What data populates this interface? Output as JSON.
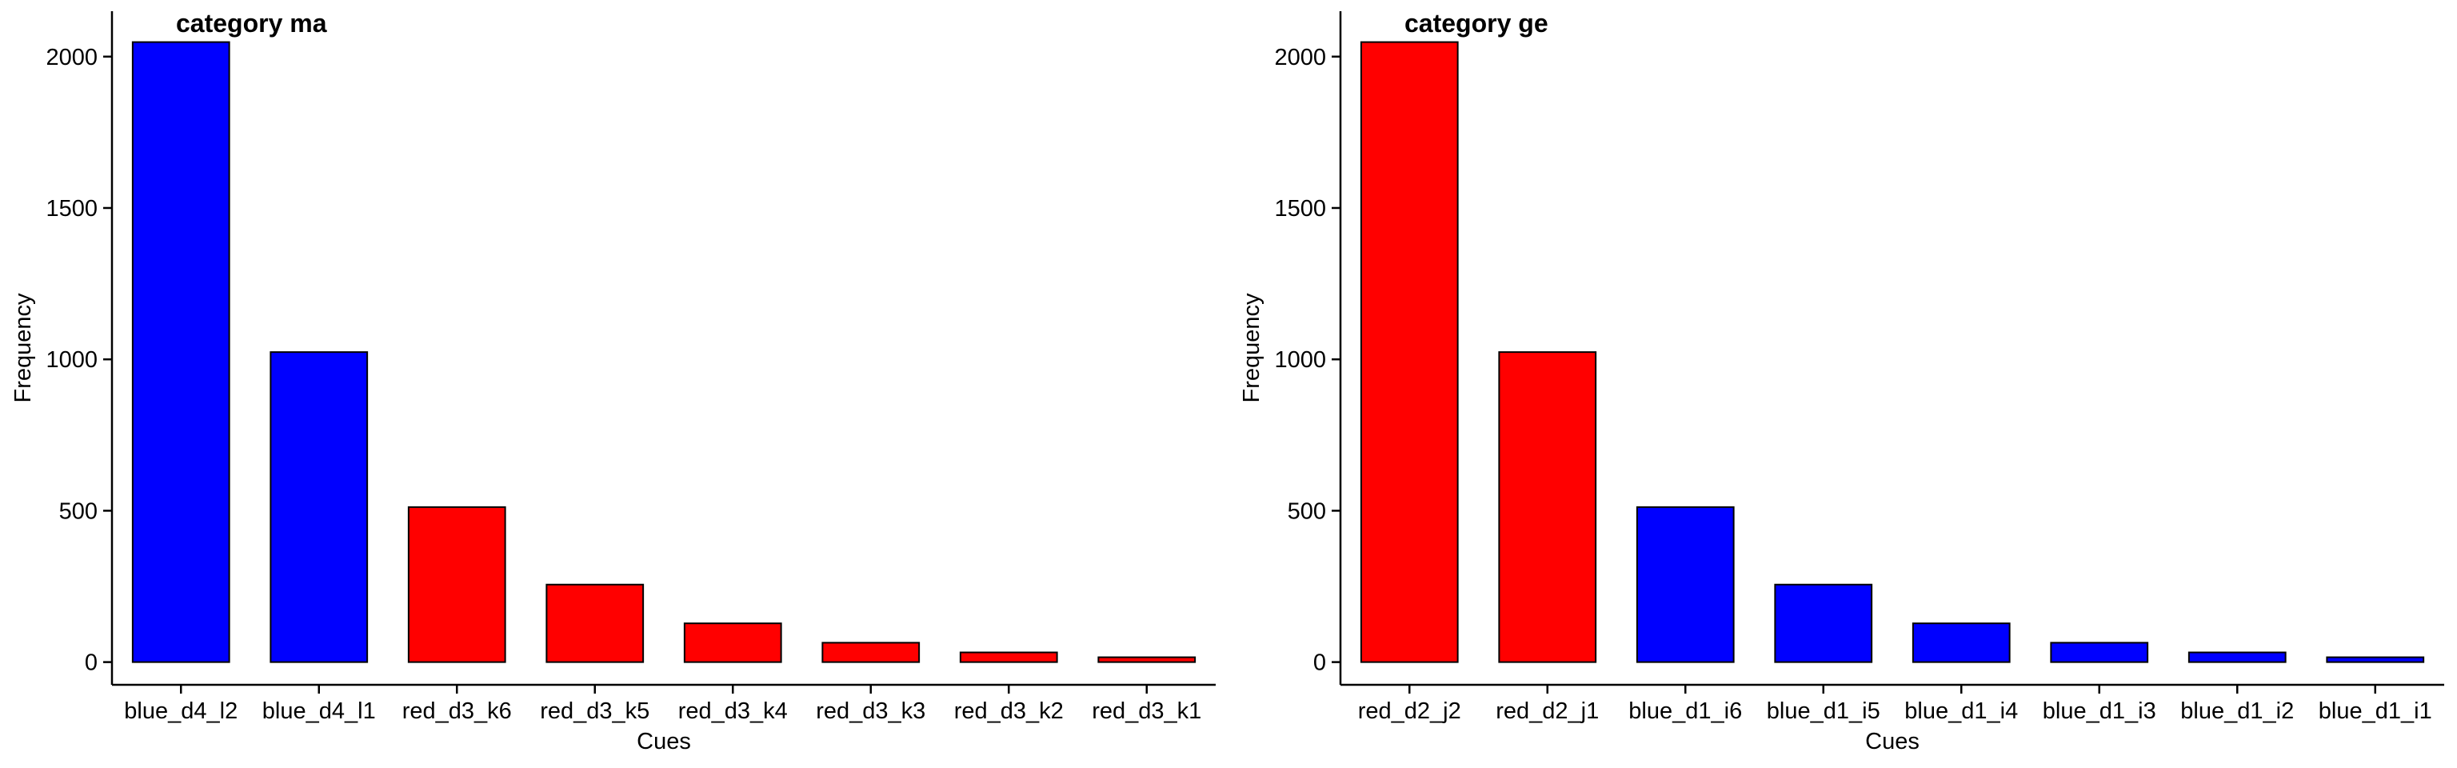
{
  "chart_data": [
    {
      "type": "bar",
      "title": "category ma",
      "xlabel": "Cues",
      "ylabel": "Frequency",
      "ylim": [
        -75,
        2150
      ],
      "yticks": [
        0,
        500,
        1000,
        1500,
        2000
      ],
      "grid": false,
      "categories": [
        "blue_d4_l2",
        "blue_d4_l1",
        "red_d3_k6",
        "red_d3_k5",
        "red_d3_k4",
        "red_d3_k3",
        "red_d3_k2",
        "red_d3_k1"
      ],
      "values": [
        2048,
        1024,
        512,
        256,
        128,
        64,
        32,
        16
      ],
      "colors": [
        "#0000ff",
        "#0000ff",
        "#ff0000",
        "#ff0000",
        "#ff0000",
        "#ff0000",
        "#ff0000",
        "#ff0000"
      ]
    },
    {
      "type": "bar",
      "title": "category ge",
      "xlabel": "Cues",
      "ylabel": "Frequency",
      "ylim": [
        -75,
        2150
      ],
      "yticks": [
        0,
        500,
        1000,
        1500,
        2000
      ],
      "grid": false,
      "categories": [
        "red_d2_j2",
        "red_d2_j1",
        "blue_d1_i6",
        "blue_d1_i5",
        "blue_d1_i4",
        "blue_d1_i3",
        "blue_d1_i2",
        "blue_d1_i1"
      ],
      "values": [
        2048,
        1024,
        512,
        256,
        128,
        64,
        32,
        16
      ],
      "colors": [
        "#ff0000",
        "#ff0000",
        "#0000ff",
        "#0000ff",
        "#0000ff",
        "#0000ff",
        "#0000ff",
        "#0000ff"
      ]
    }
  ]
}
